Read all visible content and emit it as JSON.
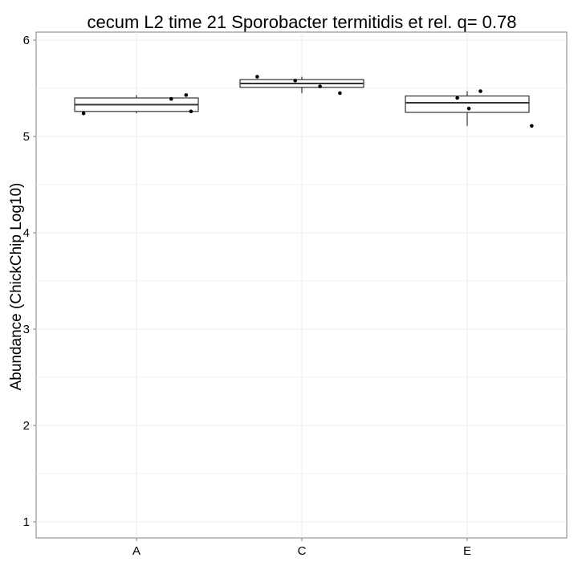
{
  "chart_data": {
    "type": "box",
    "title": "cecum L2 time 21 Sporobacter termitidis et rel. q= 0.78",
    "xlabel": "",
    "ylabel": "Abundance (ChickChip Log10)",
    "categories": [
      "A",
      "C",
      "E"
    ],
    "ylim": [
      0.84,
      6.1
    ],
    "yticks": [
      1,
      2,
      3,
      4,
      5,
      6
    ],
    "grid": true,
    "boxes": [
      {
        "category": "A",
        "lower_whisker": 5.24,
        "q1": 5.26,
        "median": 5.33,
        "q3": 5.4,
        "upper_whisker": 5.43
      },
      {
        "category": "C",
        "lower_whisker": 5.45,
        "q1": 5.51,
        "median": 5.55,
        "q3": 5.59,
        "upper_whisker": 5.62
      },
      {
        "category": "E",
        "lower_whisker": 5.11,
        "q1": 5.25,
        "median": 5.35,
        "q3": 5.42,
        "upper_whisker": 5.47
      }
    ],
    "points": [
      {
        "category": "A",
        "offset": -0.32,
        "y": 5.24
      },
      {
        "category": "A",
        "offset": 0.21,
        "y": 5.39
      },
      {
        "category": "A",
        "offset": 0.3,
        "y": 5.43
      },
      {
        "category": "A",
        "offset": 0.33,
        "y": 5.26
      },
      {
        "category": "C",
        "offset": -0.27,
        "y": 5.62
      },
      {
        "category": "C",
        "offset": -0.04,
        "y": 5.58
      },
      {
        "category": "C",
        "offset": 0.11,
        "y": 5.52
      },
      {
        "category": "C",
        "offset": 0.23,
        "y": 5.45
      },
      {
        "category": "E",
        "offset": -0.06,
        "y": 5.4
      },
      {
        "category": "E",
        "offset": 0.01,
        "y": 5.29
      },
      {
        "category": "E",
        "offset": 0.08,
        "y": 5.47
      },
      {
        "category": "E",
        "offset": 0.39,
        "y": 5.11
      }
    ]
  }
}
